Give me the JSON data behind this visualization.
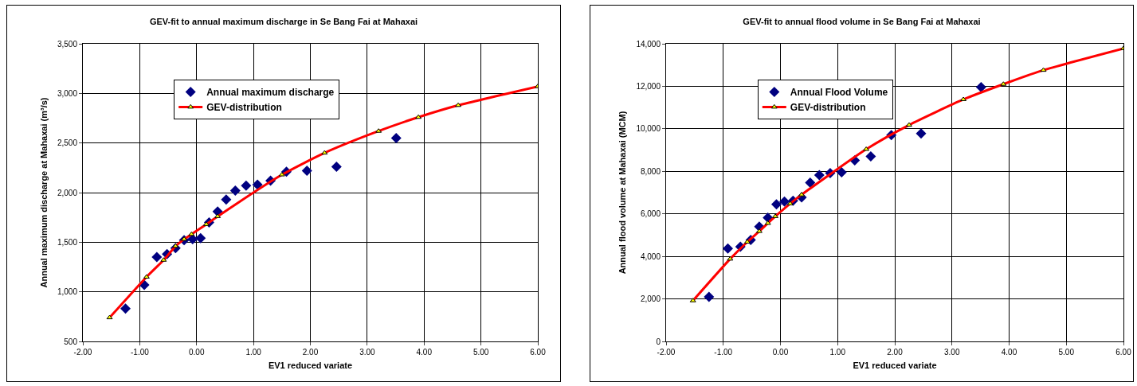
{
  "chart_data": [
    {
      "type": "scatter",
      "title": "GEV-fit to annual maximum discharge in Se Bang Fai at Mahaxai",
      "xlabel": "EV1 reduced variate",
      "ylabel": "Annual maximum discharge at Mahaxai (m³/s)",
      "xlim": [
        -2,
        6
      ],
      "ylim": [
        500,
        3500
      ],
      "xticks": [
        {
          "value": -2,
          "label": "-2.00"
        },
        {
          "value": -1,
          "label": "-1.00"
        },
        {
          "value": 0,
          "label": "0.00"
        },
        {
          "value": 1,
          "label": "1.00"
        },
        {
          "value": 2,
          "label": "2.00"
        },
        {
          "value": 3,
          "label": "3.00"
        },
        {
          "value": 4,
          "label": "4.00"
        },
        {
          "value": 5,
          "label": "5.00"
        },
        {
          "value": 6,
          "label": "6.00"
        }
      ],
      "yticks": [
        {
          "value": 500,
          "label": "500"
        },
        {
          "value": 1000,
          "label": "1,000"
        },
        {
          "value": 1500,
          "label": "1,500"
        },
        {
          "value": 2000,
          "label": "2,000"
        },
        {
          "value": 2500,
          "label": "2,500"
        },
        {
          "value": 3000,
          "label": "3,000"
        },
        {
          "value": 3500,
          "label": "3,500"
        }
      ],
      "grid": true,
      "legend": "top left",
      "series": [
        {
          "name": "Annual maximum discharge",
          "marker": "diamond",
          "color": "#000080",
          "x": [
            -1.25,
            -0.92,
            -0.7,
            -0.52,
            -0.37,
            -0.22,
            -0.07,
            0.07,
            0.22,
            0.37,
            0.52,
            0.68,
            0.87,
            1.07,
            1.3,
            1.58,
            1.94,
            2.46,
            3.51
          ],
          "values": [
            830,
            1070,
            1350,
            1380,
            1440,
            1520,
            1530,
            1540,
            1700,
            1810,
            1930,
            2020,
            2070,
            2080,
            2120,
            2210,
            2220,
            2260,
            2550
          ]
        },
        {
          "name": "GEV-distribution",
          "type": "line",
          "marker": "triangle",
          "color": "#ff0000",
          "x": [
            -1.53,
            -0.88,
            -0.58,
            -0.37,
            -0.22,
            -0.09,
            0.17,
            0.37,
            1.5,
            2.25,
            3.2,
            3.9,
            4.6,
            6.0
          ],
          "values": [
            740,
            1150,
            1320,
            1460,
            1530,
            1580,
            1680,
            1760,
            2180,
            2400,
            2620,
            2760,
            2880,
            3070
          ]
        }
      ]
    },
    {
      "type": "scatter",
      "title": "GEV-fit to annual flood volume in Se Bang Fai at Mahaxai",
      "xlabel": "EV1 reduced variate",
      "ylabel": "Annual flood volume at Mahaxai (MCM)",
      "xlim": [
        -2,
        6
      ],
      "ylim": [
        0,
        14000
      ],
      "xticks": [
        {
          "value": -2,
          "label": "-2.00"
        },
        {
          "value": -1,
          "label": "-1.00"
        },
        {
          "value": 0,
          "label": "0.00"
        },
        {
          "value": 1,
          "label": "1.00"
        },
        {
          "value": 2,
          "label": "2.00"
        },
        {
          "value": 3,
          "label": "3.00"
        },
        {
          "value": 4,
          "label": "4.00"
        },
        {
          "value": 5,
          "label": "5.00"
        },
        {
          "value": 6,
          "label": "6.00"
        }
      ],
      "yticks": [
        0,
        {
          "value": 2000,
          "label": "2,000"
        },
        {
          "value": 4000,
          "label": "4,000"
        },
        {
          "value": 6000,
          "label": "6,000"
        },
        {
          "value": 8000,
          "label": "8,000"
        },
        {
          "value": 10000,
          "label": "10,000"
        },
        {
          "value": 12000,
          "label": "12,000"
        },
        {
          "value": 14000,
          "label": "14,000"
        }
      ],
      "grid": true,
      "legend": "top left",
      "series": [
        {
          "name": "Annual Flood Volume",
          "marker": "diamond",
          "color": "#000080",
          "x": [
            -1.25,
            -0.92,
            -0.7,
            -0.52,
            -0.37,
            -0.22,
            -0.07,
            0.07,
            0.22,
            0.37,
            0.52,
            0.68,
            0.87,
            1.07,
            1.3,
            1.58,
            1.94,
            2.46,
            3.51
          ],
          "values": [
            2100,
            4370,
            4450,
            4770,
            5400,
            5820,
            6450,
            6580,
            6620,
            6780,
            7470,
            7820,
            7920,
            7950,
            8520,
            8700,
            9700,
            9780,
            11960
          ]
        },
        {
          "name": "GEV-distribution",
          "type": "line",
          "marker": "triangle",
          "color": "#ff0000",
          "x": [
            -1.53,
            -0.88,
            -0.58,
            -0.37,
            -0.22,
            -0.09,
            0.17,
            0.37,
            1.5,
            2.25,
            3.2,
            3.9,
            4.6,
            6.0
          ],
          "values": [
            1920,
            3880,
            4680,
            5180,
            5560,
            5880,
            6480,
            6900,
            9040,
            10180,
            11380,
            12100,
            12760,
            13780
          ]
        }
      ]
    }
  ]
}
